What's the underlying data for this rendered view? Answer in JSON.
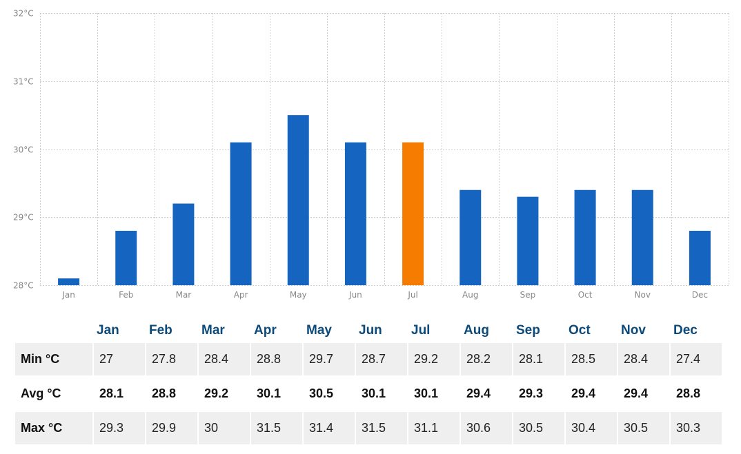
{
  "chart_data": {
    "type": "bar",
    "categories": [
      "Jan",
      "Feb",
      "Mar",
      "Apr",
      "May",
      "Jun",
      "Jul",
      "Aug",
      "Sep",
      "Oct",
      "Nov",
      "Dec"
    ],
    "values": [
      28.1,
      28.8,
      29.2,
      30.1,
      30.5,
      30.1,
      30.1,
      29.4,
      29.3,
      29.4,
      29.4,
      28.8
    ],
    "ylim": [
      28,
      32
    ],
    "yticks": [
      "28°C",
      "29°C",
      "30°C",
      "31°C",
      "32°C"
    ],
    "grid": true,
    "colors": {
      "bar": "#1565c0",
      "highlight": "#f57c00",
      "grid": "#cccccc"
    },
    "highlight_index": 6
  },
  "table": {
    "months": [
      "Jan",
      "Feb",
      "Mar",
      "Apr",
      "May",
      "Jun",
      "Jul",
      "Aug",
      "Sep",
      "Oct",
      "Nov",
      "Dec"
    ],
    "rows": [
      {
        "label": "Min °C",
        "values": [
          "27",
          "27.8",
          "28.4",
          "28.8",
          "29.7",
          "28.7",
          "29.2",
          "28.2",
          "28.1",
          "28.5",
          "28.4",
          "27.4"
        ]
      },
      {
        "label": "Avg °C",
        "values": [
          "28.1",
          "28.8",
          "29.2",
          "30.1",
          "30.5",
          "30.1",
          "30.1",
          "29.4",
          "29.3",
          "29.4",
          "29.4",
          "28.8"
        ]
      },
      {
        "label": "Max °C",
        "values": [
          "29.3",
          "29.9",
          "30",
          "31.5",
          "31.4",
          "31.5",
          "31.1",
          "30.6",
          "30.5",
          "30.4",
          "30.5",
          "30.3"
        ]
      }
    ]
  }
}
